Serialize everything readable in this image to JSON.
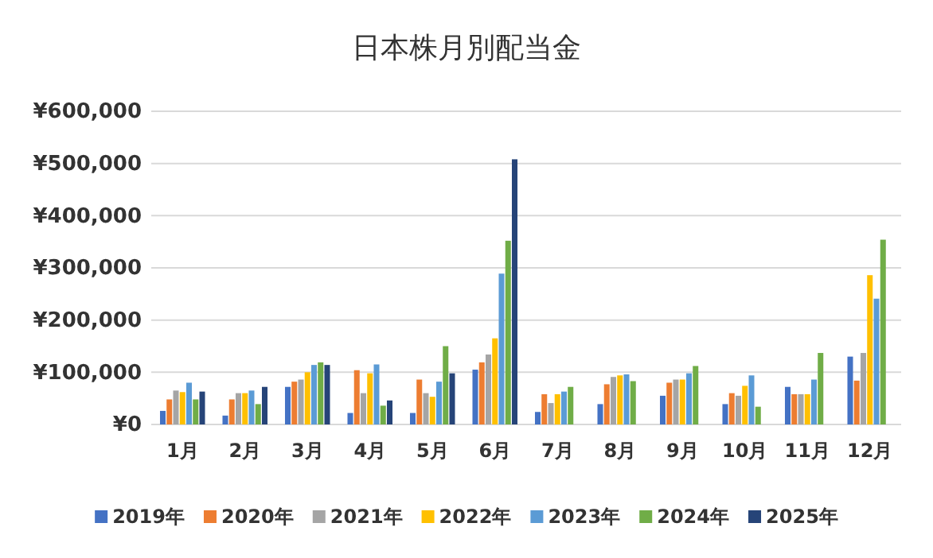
{
  "chart_data": {
    "type": "bar",
    "title": "日本株月別配当金",
    "categories": [
      "1月",
      "2月",
      "3月",
      "4月",
      "5月",
      "6月",
      "7月",
      "8月",
      "9月",
      "10月",
      "11月",
      "12月"
    ],
    "series": [
      {
        "name": "2019年",
        "color": "#4472c4",
        "values": [
          26000,
          17000,
          72000,
          22000,
          22000,
          105000,
          24000,
          39000,
          55000,
          39000,
          72000,
          130000
        ]
      },
      {
        "name": "2020年",
        "color": "#ed7d31",
        "values": [
          48000,
          48000,
          82000,
          104000,
          86000,
          119000,
          58000,
          77000,
          80000,
          60000,
          58000,
          84000
        ]
      },
      {
        "name": "2021年",
        "color": "#a5a5a5",
        "values": [
          65000,
          60000,
          86000,
          60000,
          60000,
          134000,
          41000,
          91000,
          86000,
          55000,
          58000,
          137000
        ]
      },
      {
        "name": "2022年",
        "color": "#ffc000",
        "values": [
          62000,
          60000,
          100000,
          98000,
          53000,
          165000,
          58000,
          94000,
          86000,
          74000,
          58000,
          286000
        ]
      },
      {
        "name": "2023年",
        "color": "#5b9bd5",
        "values": [
          80000,
          65000,
          114000,
          115000,
          82000,
          289000,
          63000,
          96000,
          98000,
          94000,
          86000,
          241000
        ]
      },
      {
        "name": "2024年",
        "color": "#70ad47",
        "values": [
          48000,
          39000,
          119000,
          36000,
          150000,
          352000,
          72000,
          83000,
          112000,
          34000,
          137000,
          354000
        ]
      },
      {
        "name": "2025年",
        "color": "#264478",
        "values": [
          63000,
          72000,
          114000,
          46000,
          98000,
          508000,
          null,
          null,
          null,
          null,
          null,
          null
        ]
      }
    ],
    "ylim": [
      0,
      600000
    ],
    "yticks": [
      {
        "value": 0,
        "label": "¥0"
      },
      {
        "value": 100000,
        "label": "¥100,000"
      },
      {
        "value": 200000,
        "label": "¥200,000"
      },
      {
        "value": 300000,
        "label": "¥300,000"
      },
      {
        "value": 400000,
        "label": "¥400,000"
      },
      {
        "value": 500000,
        "label": "¥500,000"
      },
      {
        "value": 600000,
        "label": "¥600,000"
      }
    ],
    "grid": "y",
    "legend": "bottom"
  }
}
